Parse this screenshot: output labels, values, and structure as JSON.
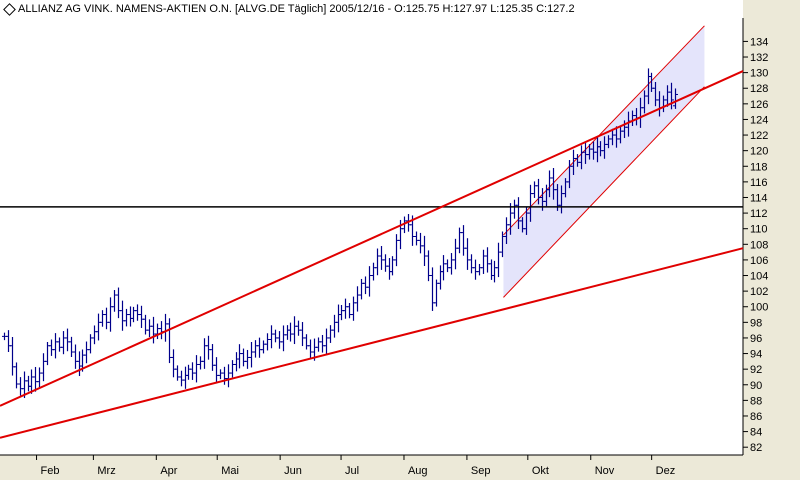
{
  "header": {
    "title": "ALLIANZ AG VINK. NAMENS-AKTIEN O.N. [ALVG.DE  Täglich] 2005/12/16 - O:125.75 H:127.97 L:125.35 C:127.2"
  },
  "colors": {
    "background": "#ffffff",
    "bars": "#00008b",
    "trendlines": "#e00000",
    "horizontal_line": "#000000",
    "channel_fill": "#e4e4fb",
    "axis_panel": "#ece9d8"
  },
  "chart_data": {
    "type": "ohlc",
    "title": "ALLIANZ AG VINK. NAMENS-AKTIEN O.N. [ALVG.DE  Täglich] 2005/12/16 - O:125.75 H:127.97 L:125.35 C:127.2",
    "ylabel": "",
    "xlabel": "",
    "ylim": [
      80,
      136
    ],
    "y_ticks": [
      82,
      84,
      86,
      88,
      90,
      92,
      94,
      96,
      98,
      100,
      102,
      104,
      106,
      108,
      110,
      112,
      114,
      116,
      118,
      120,
      122,
      124,
      126,
      128,
      130,
      132,
      134
    ],
    "x_months": [
      "Feb",
      "Mrz",
      "Apr",
      "Mai",
      "Jun",
      "Jul",
      "Aug",
      "Sep",
      "Okt",
      "Nov",
      "Dez"
    ],
    "x_range": [
      "2005-01-14",
      "2006-01-15"
    ],
    "last_bar": {
      "date": "2005/12/16",
      "open": 125.75,
      "high": 127.97,
      "low": 125.35,
      "close": 127.2
    },
    "closes": [
      96.2,
      95.0,
      92.3,
      90.1,
      89.5,
      90.5,
      89.8,
      91.0,
      90.4,
      91.5,
      93.0,
      95.0,
      94.5,
      95.5,
      94.8,
      96.0,
      95.5,
      94.2,
      93.0,
      92.4,
      93.8,
      94.5,
      96.0,
      96.8,
      98.0,
      99.0,
      98.0,
      100.0,
      101.5,
      99.5,
      98.2,
      99.0,
      98.5,
      99.5,
      99.0,
      98.4,
      97.0,
      97.5,
      96.5,
      97.2,
      96.8,
      97.8,
      93.5,
      92.0,
      91.0,
      90.6,
      91.2,
      92.0,
      91.5,
      92.6,
      93.0,
      95.0,
      94.5,
      92.5,
      91.2,
      91.5,
      90.8,
      91.5,
      92.6,
      93.3,
      94.0,
      93.0,
      93.5,
      94.2,
      95.0,
      94.5,
      95.2,
      95.8,
      96.5,
      96.0,
      95.5,
      96.4,
      97.0,
      96.5,
      97.5,
      97.0,
      96.0,
      95.0,
      94.2,
      94.8,
      95.5,
      95.0,
      96.0,
      97.0,
      98.0,
      99.0,
      99.5,
      100.0,
      99.0,
      100.5,
      101.5,
      103.0,
      102.5,
      104.0,
      105.0,
      106.5,
      106.0,
      105.2,
      104.5,
      106.0,
      108.5,
      110.0,
      111.0,
      110.5,
      109.0,
      108.5,
      107.8,
      106.5,
      104.0,
      100.5,
      103.0,
      104.5,
      105.5,
      105.0,
      106.0,
      107.5,
      109.5,
      107.5,
      106.0,
      105.0,
      104.5,
      105.0,
      106.5,
      105.5,
      104.0,
      105.0,
      107.0,
      109.0,
      110.5,
      112.0,
      113.0,
      111.0,
      110.0,
      112.0,
      114.5,
      115.5,
      114.0,
      113.5,
      115.0,
      116.5,
      115.0,
      113.0,
      114.5,
      116.0,
      118.0,
      119.0,
      118.5,
      119.8,
      119.5,
      120.2,
      119.8,
      120.5,
      120.0,
      120.8,
      121.5,
      122.0,
      121.5,
      122.5,
      123.0,
      123.8,
      124.5,
      124.2,
      125.5,
      127.0,
      129.5,
      128.0,
      126.5,
      125.5,
      126.5,
      127.5,
      126.5,
      127.2
    ],
    "horizontal_line": 112.8,
    "trendlines": [
      {
        "from": {
          "date": "2005-01-14",
          "value": 87.3
        },
        "to": {
          "date": "2006-01-15",
          "value": 130.2
        }
      },
      {
        "from": {
          "date": "2005-01-14",
          "value": 83.2
        },
        "to": {
          "date": "2006-01-15",
          "value": 107.5
        }
      }
    ],
    "channel": {
      "upper": {
        "from": {
          "date": "2005-09-19",
          "value": 109.2
        },
        "to": {
          "date": "2005-12-27",
          "value": 136.0
        }
      },
      "lower": {
        "from": {
          "date": "2005-09-19",
          "value": 101.2
        },
        "to": {
          "date": "2005-12-27",
          "value": 128.2
        }
      }
    }
  }
}
